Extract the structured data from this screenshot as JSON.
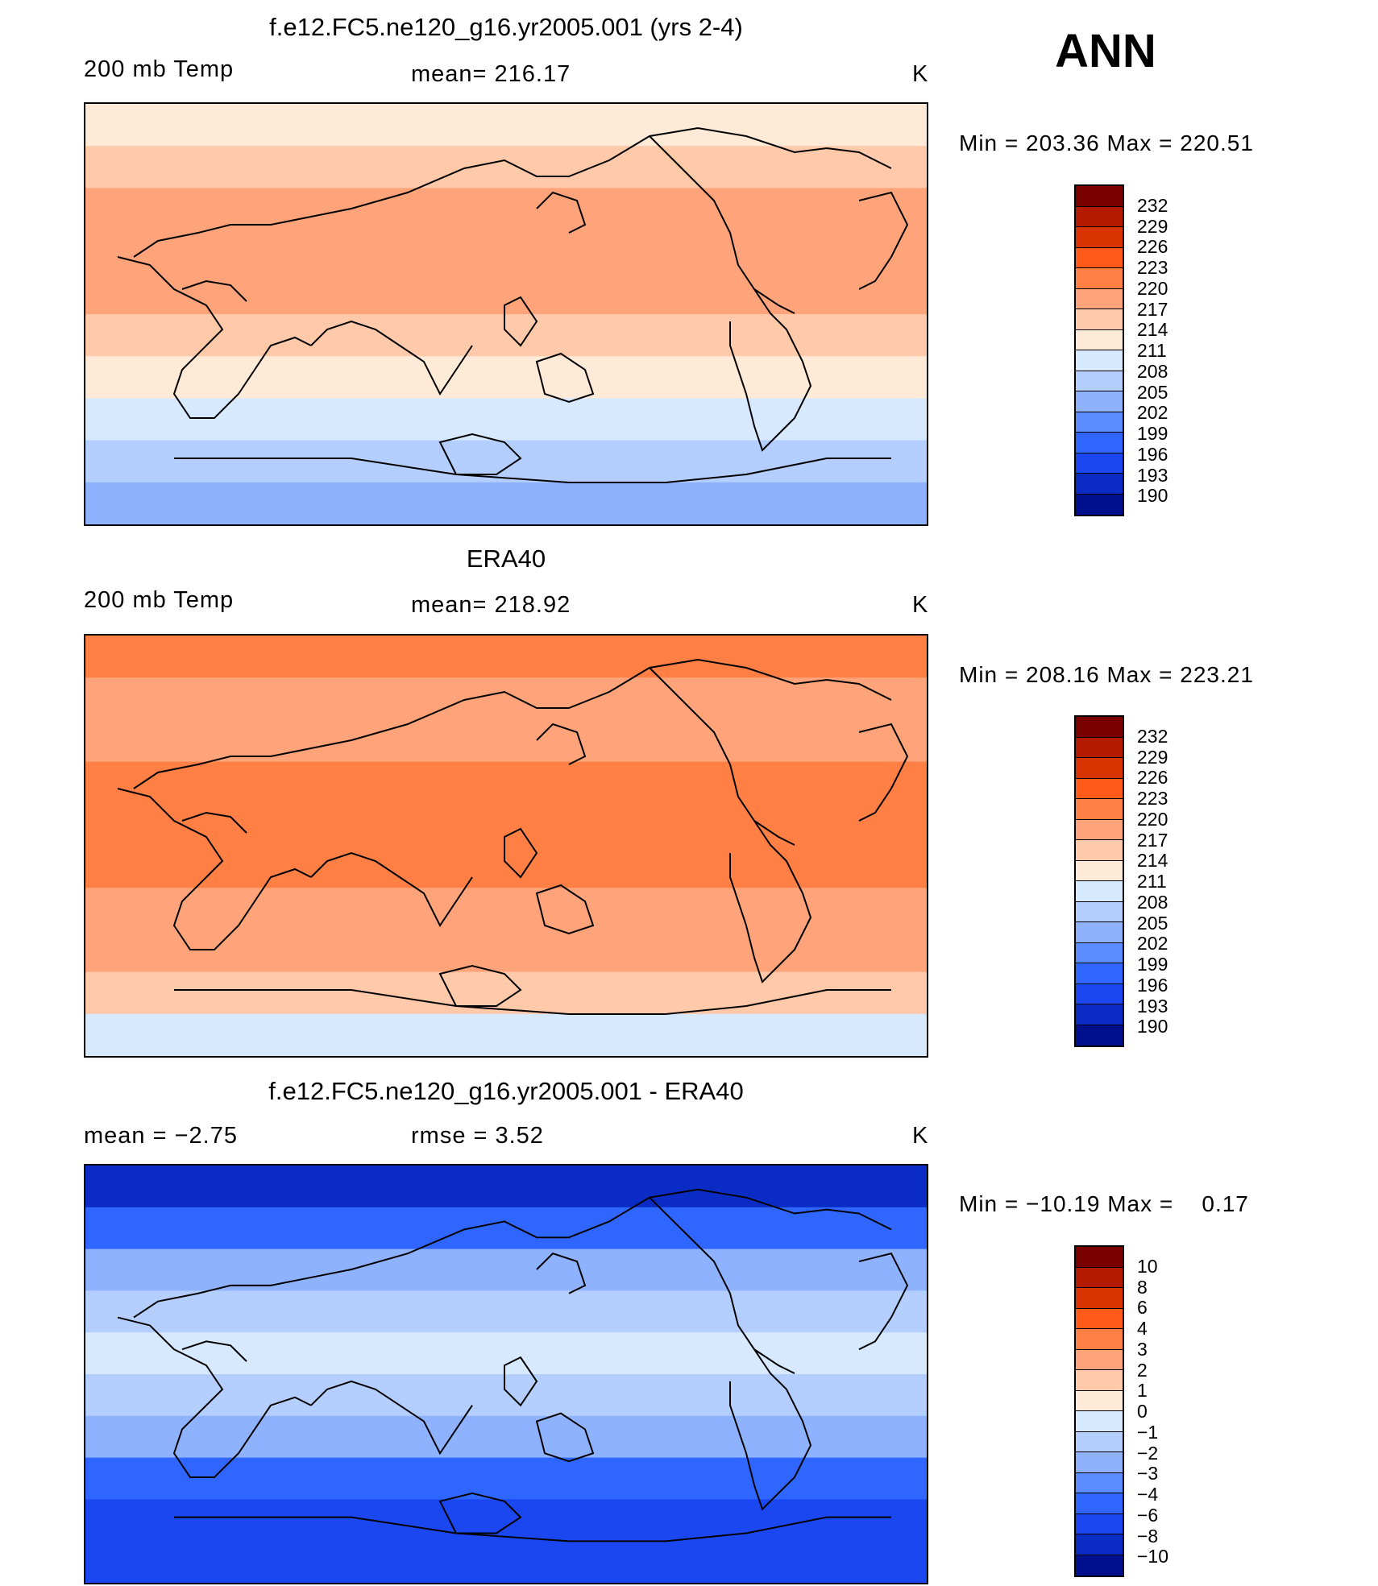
{
  "season": "ANN",
  "colors": {
    "temp_scale": [
      "#7a0000",
      "#b31a00",
      "#d93300",
      "#ff5a19",
      "#ff7f45",
      "#ffa47a",
      "#ffc9aa",
      "#ffe9d7",
      "#d7e9ff",
      "#b4cfff",
      "#8fb2ff",
      "#5a8cff",
      "#2f66ff",
      "#1a47f0",
      "#0a2cc4",
      "#000f8c"
    ],
    "diff_scale": [
      "#7a0000",
      "#b31a00",
      "#d93300",
      "#ff5a19",
      "#ff7f45",
      "#ffa47a",
      "#ffc9aa",
      "#ffe9d7",
      "#d7e9ff",
      "#b4cfff",
      "#8fb2ff",
      "#5a8cff",
      "#2f66ff",
      "#1a47f0",
      "#0a2cc4",
      "#000f8c"
    ]
  },
  "panels": [
    {
      "title": "f.e12.FC5.ne120_g16.yr2005.001 (yrs 2-4)",
      "left_label": "200 mb Temp",
      "center_label": "mean= 216.17",
      "units": "K",
      "minmax": "Min = 203.36 Max = 220.51",
      "colorbar_labels": [
        "232",
        "229",
        "226",
        "223",
        "220",
        "217",
        "214",
        "211",
        "208",
        "205",
        "202",
        "199",
        "196",
        "193",
        "190"
      ],
      "field_bands": [
        "#ffe9d7",
        "#ffc9aa",
        "#ffa47a",
        "#ffa47a",
        "#ffa47a",
        "#ffc9aa",
        "#ffe9d7",
        "#d7e9ff",
        "#b4cfff",
        "#8fb2ff"
      ]
    },
    {
      "title": "ERA40",
      "left_label": "200 mb Temp",
      "center_label": "mean= 218.92",
      "units": "K",
      "minmax": "Min = 208.16 Max = 223.21",
      "colorbar_labels": [
        "232",
        "229",
        "226",
        "223",
        "220",
        "217",
        "214",
        "211",
        "208",
        "205",
        "202",
        "199",
        "196",
        "193",
        "190"
      ],
      "field_bands": [
        "#ff7f45",
        "#ffa47a",
        "#ffa47a",
        "#ff7f45",
        "#ff7f45",
        "#ff7f45",
        "#ffa47a",
        "#ffa47a",
        "#ffc9aa",
        "#d7e9ff"
      ]
    },
    {
      "title": "f.e12.FC5.ne120_g16.yr2005.001 - ERA40",
      "left_label": "mean =    −2.75",
      "center_label": "rmse =     3.52",
      "units": "K",
      "minmax": "Min = −10.19 Max =    0.17",
      "colorbar_labels": [
        "10",
        "8",
        "6",
        "4",
        "3",
        "2",
        "1",
        "0",
        "−1",
        "−2",
        "−3",
        "−4",
        "−6",
        "−8",
        "−10"
      ],
      "field_bands": [
        "#0a2cc4",
        "#2f66ff",
        "#8fb2ff",
        "#b4cfff",
        "#d7e9ff",
        "#b4cfff",
        "#8fb2ff",
        "#2f66ff",
        "#1a47f0",
        "#1a47f0"
      ]
    }
  ]
}
